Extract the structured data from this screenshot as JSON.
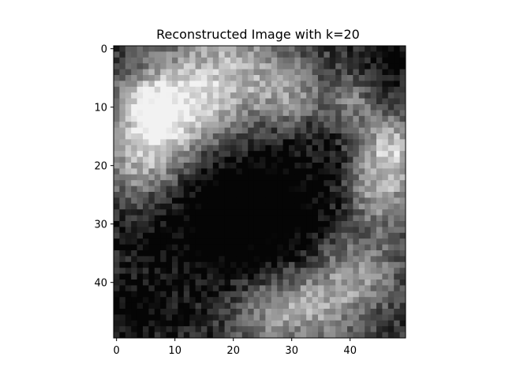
{
  "chart_data": {
    "type": "heatmap",
    "title": "Reconstructed Image with k=20",
    "colormap": "grayscale",
    "x_ticks": [
      0,
      10,
      20,
      30,
      40
    ],
    "y_ticks": [
      0,
      10,
      20,
      30,
      40
    ],
    "grid_size": [
      50,
      50
    ],
    "xlim": [
      -0.5,
      49.5
    ],
    "ylim": [
      49.5,
      -0.5
    ],
    "grid": false
  }
}
